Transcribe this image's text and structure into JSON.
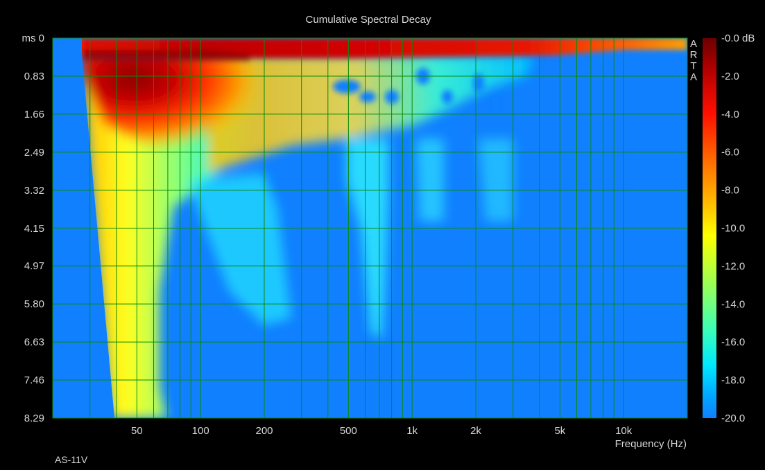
{
  "chart_data": {
    "type": "heatmap",
    "title": "Cumulative Spectral Decay",
    "xlabel": "Frequency (Hz)",
    "ylabel": "ms",
    "x_scale": "log",
    "xlim": [
      20,
      20000
    ],
    "ylim": [
      0,
      8.29
    ],
    "x_ticks": [
      {
        "value": 50,
        "label": "50"
      },
      {
        "value": 100,
        "label": "100"
      },
      {
        "value": 200,
        "label": "200"
      },
      {
        "value": 500,
        "label": "500"
      },
      {
        "value": 1000,
        "label": "1k"
      },
      {
        "value": 2000,
        "label": "2k"
      },
      {
        "value": 5000,
        "label": "5k"
      },
      {
        "value": 10000,
        "label": "10k"
      }
    ],
    "x_gridlines": [
      30,
      40,
      50,
      60,
      70,
      80,
      90,
      100,
      200,
      300,
      400,
      500,
      600,
      700,
      800,
      900,
      1000,
      2000,
      3000,
      4000,
      5000,
      6000,
      7000,
      8000,
      9000,
      10000,
      20000
    ],
    "y_ticks": [
      "ms 0",
      "0.83",
      "1.66",
      "2.49",
      "3.32",
      "4.15",
      "4.97",
      "5.80",
      "6.63",
      "7.46",
      "8.29"
    ],
    "y_tick_values": [
      0,
      0.83,
      1.66,
      2.49,
      3.32,
      4.15,
      4.97,
      5.8,
      6.63,
      7.46,
      8.29
    ],
    "colorbar": {
      "unit": "dB",
      "range": [
        -20,
        0
      ],
      "ticks": [
        "-0.0 dB",
        "-2.0",
        "-4.0",
        "-6.0",
        "-8.0",
        "-10.0",
        "-12.0",
        "-14.0",
        "-16.0",
        "-18.0",
        "-20.0"
      ],
      "colors": [
        "#6b0000",
        "#c00000",
        "#ff2000",
        "#ff7a00",
        "#ffc000",
        "#ffff00",
        "#b0ff40",
        "#50ffa0",
        "#00f0ff",
        "#00b0ff",
        "#1080ff"
      ]
    },
    "grid": true,
    "grid_color": "#0a8a0a",
    "background_color": "#1080ff",
    "brand": "ARTA",
    "note": "AS-11V"
  }
}
